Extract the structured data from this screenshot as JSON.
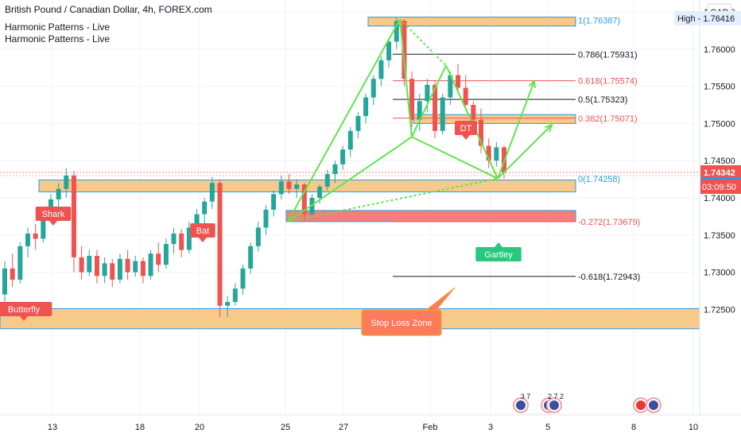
{
  "header": {
    "symbol_line": "British Pound / Canadian Dollar, 4h, FOREX.com",
    "indicators": [
      "Harmonic Patterns - Live",
      "Harmonic Patterns - Live"
    ]
  },
  "price_scale": {
    "currency_button": "CAD",
    "high_label": "High - 1.76416",
    "last_price": "1.74342",
    "countdown": "03:09:50"
  },
  "colors": {
    "up": "#26a69a",
    "down": "#ef5350",
    "zone_fill": "#f7c98b",
    "zone_border": "#2a9cdf",
    "pattern": "#5ee64a",
    "stop_zone": "#f77c80",
    "callout": "#fb7b5b"
  },
  "chart_data": {
    "type": "candlestick",
    "y_ticks": [
      "1.76500",
      "1.76000",
      "1.75500",
      "1.75000",
      "1.74500",
      "1.74000",
      "1.73500",
      "1.73000",
      "1.72500"
    ],
    "x_ticks": [
      "13",
      "18",
      "20",
      "25",
      "27",
      "Feb",
      "3",
      "5",
      "8",
      "10"
    ],
    "ylim": [
      1.7225,
      1.7675
    ],
    "fib_levels": [
      {
        "label": "1(1.76387)",
        "value": 1.76387,
        "color": "#2a9cdf"
      },
      {
        "label": "0.786(1.75931)",
        "value": 1.75931,
        "color": "#131722"
      },
      {
        "label": "0.618(1.75574)",
        "value": 1.75574,
        "color": "#ef5350"
      },
      {
        "label": "0.5(1.75323)",
        "value": 1.75323,
        "color": "#131722"
      },
      {
        "label": "0.382(1.75071)",
        "value": 1.75071,
        "color": "#ef5350"
      },
      {
        "label": "0(1.74258)",
        "value": 1.74258,
        "color": "#2a9cdf"
      },
      {
        "label": "-0.272(1.73679)",
        "value": 1.73679,
        "color": "#ef5350"
      },
      {
        "label": "-0.618(1.72943)",
        "value": 1.72943,
        "color": "#131722"
      }
    ],
    "zones": [
      {
        "from": 1.7631,
        "to": 1.7643
      },
      {
        "from": 1.75,
        "to": 1.7512
      },
      {
        "from": 1.7408,
        "to": 1.7424
      },
      {
        "from": 1.7224,
        "to": 1.7251
      }
    ],
    "stop_zone": {
      "from": 1.7368,
      "to": 1.7383
    },
    "pattern_labels": [
      "Shark",
      "Bat",
      "Butterfly",
      "DT",
      "Gartley"
    ],
    "stop_loss_label": "Stop Loss Zone",
    "event_badges": [
      "3",
      "7",
      "2",
      "7",
      "2"
    ],
    "xabcd": {
      "X": 1.7368,
      "A": 1.764,
      "B": 1.7482,
      "C": 1.7578,
      "D": 1.7426
    },
    "candles": [
      [
        1.727,
        1.7315,
        1.7255,
        1.7305
      ],
      [
        1.7305,
        1.7325,
        1.728,
        1.729
      ],
      [
        1.729,
        1.734,
        1.7285,
        1.7335
      ],
      [
        1.7335,
        1.736,
        1.732,
        1.7352
      ],
      [
        1.7352,
        1.7365,
        1.733,
        1.7345
      ],
      [
        1.7345,
        1.7385,
        1.734,
        1.7378
      ],
      [
        1.7378,
        1.7405,
        1.737,
        1.7398
      ],
      [
        1.7398,
        1.742,
        1.7385,
        1.7412
      ],
      [
        1.7412,
        1.744,
        1.74,
        1.743
      ],
      [
        1.743,
        1.7436,
        1.73,
        1.732
      ],
      [
        1.732,
        1.7335,
        1.729,
        1.73
      ],
      [
        1.73,
        1.733,
        1.7295,
        1.7322
      ],
      [
        1.7322,
        1.733,
        1.7285,
        1.7295
      ],
      [
        1.7295,
        1.732,
        1.7285,
        1.7312
      ],
      [
        1.7312,
        1.7318,
        1.728,
        1.729
      ],
      [
        1.729,
        1.7325,
        1.7285,
        1.7318
      ],
      [
        1.7318,
        1.733,
        1.729,
        1.73
      ],
      [
        1.73,
        1.7322,
        1.7294,
        1.7315
      ],
      [
        1.7315,
        1.732,
        1.7285,
        1.7295
      ],
      [
        1.7295,
        1.733,
        1.729,
        1.7325
      ],
      [
        1.7325,
        1.734,
        1.73,
        1.731
      ],
      [
        1.731,
        1.7345,
        1.7305,
        1.7338
      ],
      [
        1.7338,
        1.736,
        1.7325,
        1.7352
      ],
      [
        1.7352,
        1.7358,
        1.732,
        1.733
      ],
      [
        1.733,
        1.7368,
        1.7325,
        1.736
      ],
      [
        1.736,
        1.7385,
        1.735,
        1.7378
      ],
      [
        1.7378,
        1.74,
        1.7365,
        1.7395
      ],
      [
        1.7395,
        1.7428,
        1.7385,
        1.742
      ],
      [
        1.742,
        1.7425,
        1.724,
        1.7255
      ],
      [
        1.7255,
        1.7268,
        1.724,
        1.726
      ],
      [
        1.726,
        1.7285,
        1.7255,
        1.7278
      ],
      [
        1.7278,
        1.731,
        1.727,
        1.7305
      ],
      [
        1.7305,
        1.734,
        1.7298,
        1.7335
      ],
      [
        1.7335,
        1.7368,
        1.7328,
        1.736
      ],
      [
        1.736,
        1.739,
        1.735,
        1.7384
      ],
      [
        1.7384,
        1.741,
        1.7375,
        1.7405
      ],
      [
        1.7405,
        1.743,
        1.7398,
        1.7422
      ],
      [
        1.7422,
        1.7432,
        1.7405,
        1.7412
      ],
      [
        1.7412,
        1.7425,
        1.74,
        1.7418
      ],
      [
        1.7418,
        1.742,
        1.737,
        1.7378
      ],
      [
        1.7378,
        1.7405,
        1.7372,
        1.74
      ],
      [
        1.74,
        1.7418,
        1.7392,
        1.7415
      ],
      [
        1.7415,
        1.7438,
        1.741,
        1.7432
      ],
      [
        1.7432,
        1.745,
        1.742,
        1.7445
      ],
      [
        1.7445,
        1.747,
        1.7438,
        1.7465
      ],
      [
        1.7465,
        1.7495,
        1.7455,
        1.749
      ],
      [
        1.749,
        1.7515,
        1.748,
        1.751
      ],
      [
        1.751,
        1.754,
        1.75,
        1.7535
      ],
      [
        1.7535,
        1.7565,
        1.7525,
        1.756
      ],
      [
        1.756,
        1.759,
        1.755,
        1.7585
      ],
      [
        1.7585,
        1.7615,
        1.7575,
        1.761
      ],
      [
        1.761,
        1.7642,
        1.76,
        1.7638
      ],
      [
        1.7638,
        1.764,
        1.755,
        1.756
      ],
      [
        1.756,
        1.757,
        1.7495,
        1.7505
      ],
      [
        1.7505,
        1.754,
        1.749,
        1.753
      ],
      [
        1.753,
        1.756,
        1.7515,
        1.7552
      ],
      [
        1.7552,
        1.7558,
        1.748,
        1.749
      ],
      [
        1.749,
        1.754,
        1.7485,
        1.7535
      ],
      [
        1.7535,
        1.757,
        1.7525,
        1.7565
      ],
      [
        1.7565,
        1.758,
        1.754,
        1.7548
      ],
      [
        1.7548,
        1.7565,
        1.752,
        1.7525
      ],
      [
        1.7525,
        1.753,
        1.7495,
        1.7505
      ],
      [
        1.7505,
        1.752,
        1.746,
        1.747
      ],
      [
        1.747,
        1.748,
        1.744,
        1.745
      ],
      [
        1.745,
        1.7475,
        1.7442,
        1.7468
      ],
      [
        1.7468,
        1.747,
        1.7426,
        1.7434
      ]
    ]
  }
}
